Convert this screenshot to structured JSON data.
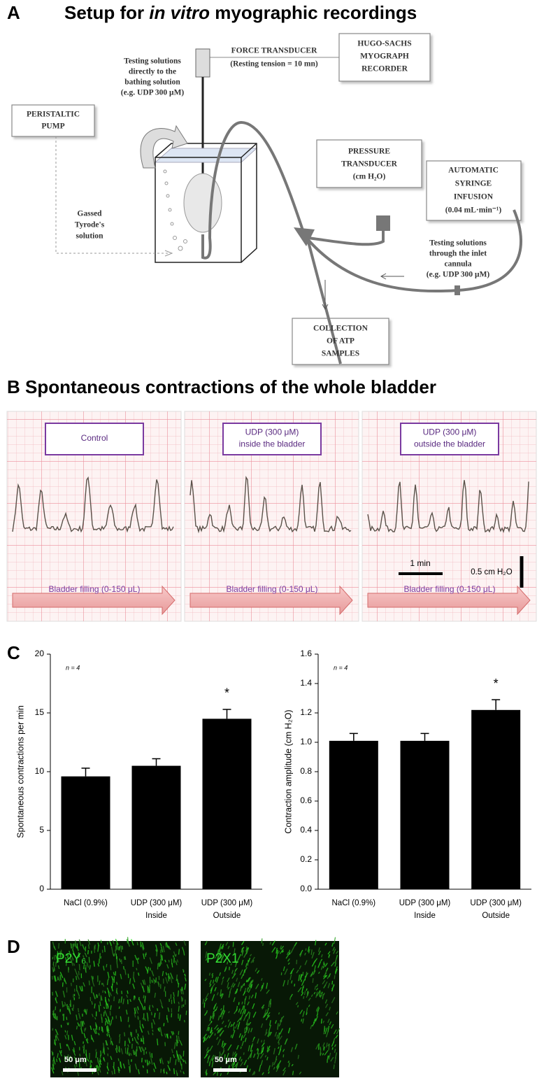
{
  "panel_a": {
    "label": "A",
    "title": [
      "Setup for ",
      "in vitro",
      " myographic recordings"
    ],
    "labels": {
      "force": [
        "FORCE TRANSDUCER",
        "(Resting tension = 10 mn)"
      ],
      "recorder": [
        "HUGO-SACHS",
        "MYOGRAPH",
        "RECORDER"
      ],
      "direct": [
        "Testing solutions",
        "directly to the",
        "bathing solution",
        "(e.g. UDP 300 μM)"
      ],
      "pump": [
        "PERISTALTIC",
        "PUMP"
      ],
      "gassed": [
        "Gassed",
        "Tyrode's",
        "solution"
      ],
      "pressure": [
        "PRESSURE",
        "TRANSDUCER",
        "(cm H₂O)"
      ],
      "syringe": [
        "AUTOMATIC",
        "SYRINGE",
        "INFUSION",
        "(0.04 mL·min⁻¹)"
      ],
      "inlet": [
        "Testing solutions",
        "through the inlet",
        "cannula",
        "(e.g. UDP 300 μM)"
      ],
      "collection": [
        "COLLECTION",
        "OF ATP",
        "SAMPLES"
      ]
    }
  },
  "panel_b": {
    "label": "B",
    "title": "Spontaneous contractions of the whole bladder",
    "recordings": [
      {
        "condition": [
          "Control"
        ],
        "filling": "Bladder filling (0-150 μL)"
      },
      {
        "condition": [
          "UDP (300 μM)",
          "inside the bladder"
        ],
        "filling": "Bladder filling (0-150 μL)"
      },
      {
        "condition": [
          "UDP (300 μM)",
          "outside the bladder"
        ],
        "filling": "Bladder filling (0-150 μL)"
      }
    ],
    "time_scale": "1 min",
    "amplitude_scale": "0.5 cm H₂O"
  },
  "panel_c": {
    "label": "C"
  },
  "chart_data": [
    {
      "type": "bar",
      "y_label": "Spontaneous contractions per min",
      "note": "n = 4",
      "annotation": "*",
      "categories": [
        "NaCl (0.9%)",
        "UDP (300 μM)\nInside",
        "UDP (300 μM)\nOutside"
      ],
      "values": [
        9.6,
        10.5,
        14.5
      ],
      "errors": [
        0.7,
        0.6,
        0.8
      ],
      "color": "#000000",
      "ylim": [
        0,
        20
      ],
      "yticks": [
        0,
        5,
        10,
        15,
        20
      ]
    },
    {
      "type": "bar",
      "y_label": "Contraction amplitude (cm H₂O)",
      "note": "n = 4",
      "annotation": "*",
      "categories": [
        "NaCl (0.9%)",
        "UDP (300 μM)\nInside",
        "UDP (300 μM)\nOutside"
      ],
      "values": [
        1.01,
        1.01,
        1.22
      ],
      "errors": [
        0.05,
        0.05,
        0.07
      ],
      "color": "#000000",
      "ylim": [
        0,
        1.6
      ],
      "yticks": [
        {
          "value": 0,
          "label": "0.0"
        },
        0.2,
        0.4,
        0.6,
        0.8,
        {
          "value": 1,
          "label": "1.0"
        },
        1.2,
        1.4,
        1.6
      ]
    }
  ],
  "panel_d": {
    "label": "D",
    "images": [
      {
        "marker": "P2Y₆",
        "scale": "50 μm"
      },
      {
        "marker": "P2X1",
        "scale": "50 μm"
      }
    ]
  }
}
